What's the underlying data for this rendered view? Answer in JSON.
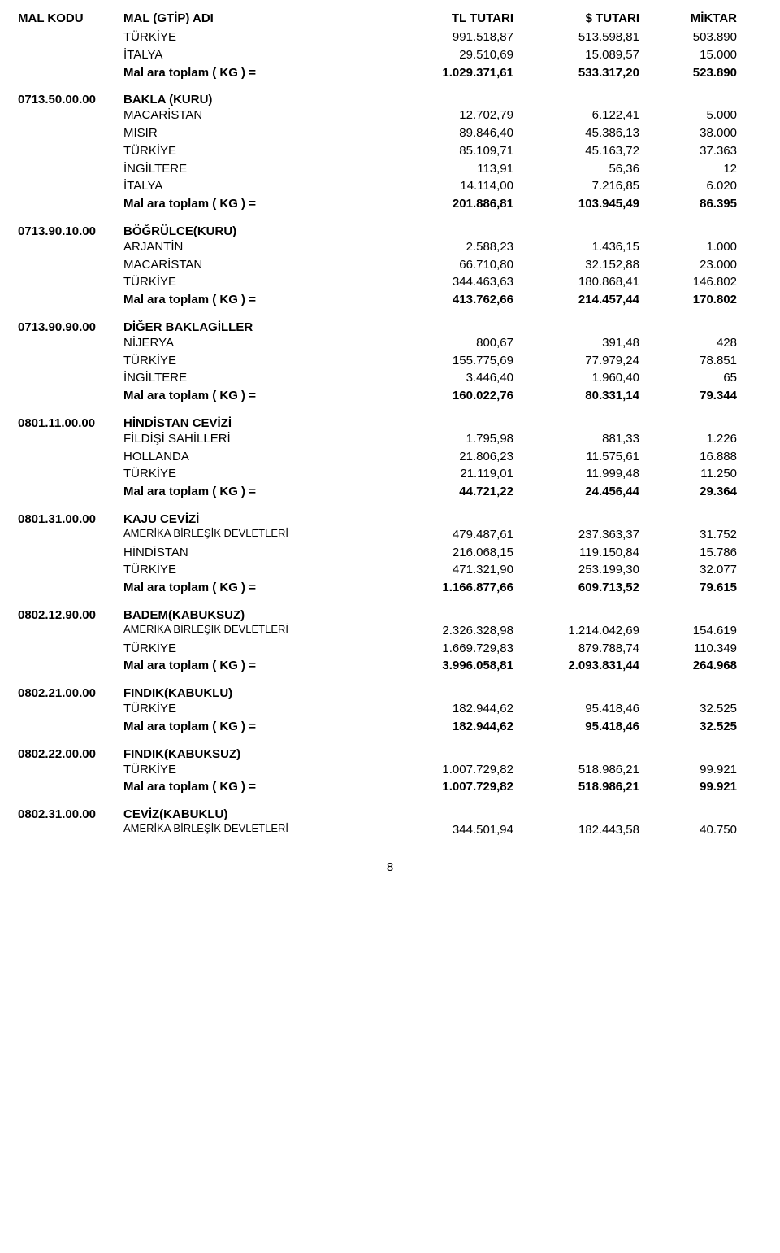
{
  "header": {
    "code": "MAL KODU",
    "name": "MAL (GTİP) ADI",
    "tl": "TL TUTARI",
    "usd": "$ TUTARI",
    "qty": "MİKTAR"
  },
  "intro_rows": [
    {
      "name": "TÜRKİYE",
      "tl": "991.518,87",
      "usd": "513.598,81",
      "qty": "503.890"
    },
    {
      "name": "İTALYA",
      "tl": "29.510,69",
      "usd": "15.089,57",
      "qty": "15.000"
    }
  ],
  "intro_total": {
    "name": "Mal ara toplam  ( KG ) =",
    "tl": "1.029.371,61",
    "usd": "533.317,20",
    "qty": "523.890"
  },
  "sections": [
    {
      "code": "0713.50.00.00",
      "title": "BAKLA (KURU)",
      "rows": [
        {
          "name": "MACARİSTAN",
          "tl": "12.702,79",
          "usd": "6.122,41",
          "qty": "5.000"
        },
        {
          "name": "MISIR",
          "tl": "89.846,40",
          "usd": "45.386,13",
          "qty": "38.000"
        },
        {
          "name": "TÜRKİYE",
          "tl": "85.109,71",
          "usd": "45.163,72",
          "qty": "37.363"
        },
        {
          "name": "İNGİLTERE",
          "tl": "113,91",
          "usd": "56,36",
          "qty": "12"
        },
        {
          "name": "İTALYA",
          "tl": "14.114,00",
          "usd": "7.216,85",
          "qty": "6.020"
        }
      ],
      "total": {
        "name": "Mal ara toplam  ( KG ) =",
        "tl": "201.886,81",
        "usd": "103.945,49",
        "qty": "86.395"
      }
    },
    {
      "code": "0713.90.10.00",
      "title": "BÖĞRÜLCE(KURU)",
      "rows": [
        {
          "name": "ARJANTİN",
          "tl": "2.588,23",
          "usd": "1.436,15",
          "qty": "1.000"
        },
        {
          "name": "MACARİSTAN",
          "tl": "66.710,80",
          "usd": "32.152,88",
          "qty": "23.000"
        },
        {
          "name": "TÜRKİYE",
          "tl": "344.463,63",
          "usd": "180.868,41",
          "qty": "146.802"
        }
      ],
      "total": {
        "name": "Mal ara toplam  ( KG ) =",
        "tl": "413.762,66",
        "usd": "214.457,44",
        "qty": "170.802"
      }
    },
    {
      "code": "0713.90.90.00",
      "title": "DİĞER BAKLAGİLLER",
      "rows": [
        {
          "name": "NİJERYA",
          "tl": "800,67",
          "usd": "391,48",
          "qty": "428"
        },
        {
          "name": "TÜRKİYE",
          "tl": "155.775,69",
          "usd": "77.979,24",
          "qty": "78.851"
        },
        {
          "name": "İNGİLTERE",
          "tl": "3.446,40",
          "usd": "1.960,40",
          "qty": "65"
        }
      ],
      "total": {
        "name": "Mal ara toplam  ( KG ) =",
        "tl": "160.022,76",
        "usd": "80.331,14",
        "qty": "79.344"
      }
    },
    {
      "code": "0801.11.00.00",
      "title": "HİNDİSTAN CEVİZİ",
      "rows": [
        {
          "name": "FİLDİŞİ SAHİLLERİ",
          "tl": "1.795,98",
          "usd": "881,33",
          "qty": "1.226"
        },
        {
          "name": "HOLLANDA",
          "tl": "21.806,23",
          "usd": "11.575,61",
          "qty": "16.888"
        },
        {
          "name": "TÜRKİYE",
          "tl": "21.119,01",
          "usd": "11.999,48",
          "qty": "11.250"
        }
      ],
      "total": {
        "name": "Mal ara toplam  ( KG ) =",
        "tl": "44.721,22",
        "usd": "24.456,44",
        "qty": "29.364"
      }
    },
    {
      "code": "0801.31.00.00",
      "title": "KAJU CEVİZİ",
      "rows": [
        {
          "name": "AMERİKA BİRLEŞİK DEVLETLERİ",
          "tl": "479.487,61",
          "usd": "237.363,37",
          "qty": "31.752",
          "small": true
        },
        {
          "name": "HİNDİSTAN",
          "tl": "216.068,15",
          "usd": "119.150,84",
          "qty": "15.786"
        },
        {
          "name": "TÜRKİYE",
          "tl": "471.321,90",
          "usd": "253.199,30",
          "qty": "32.077"
        }
      ],
      "total": {
        "name": "Mal ara toplam  ( KG ) =",
        "tl": "1.166.877,66",
        "usd": "609.713,52",
        "qty": "79.615"
      }
    },
    {
      "code": "0802.12.90.00",
      "title": "BADEM(KABUKSUZ)",
      "rows": [
        {
          "name": "AMERİKA BİRLEŞİK DEVLETLERİ",
          "tl": "2.326.328,98",
          "usd": "1.214.042,69",
          "qty": "154.619",
          "small": true
        },
        {
          "name": "TÜRKİYE",
          "tl": "1.669.729,83",
          "usd": "879.788,74",
          "qty": "110.349"
        }
      ],
      "total": {
        "name": "Mal ara toplam  ( KG ) =",
        "tl": "3.996.058,81",
        "usd": "2.093.831,44",
        "qty": "264.968"
      }
    },
    {
      "code": "0802.21.00.00",
      "title": "FINDIK(KABUKLU)",
      "rows": [
        {
          "name": "TÜRKİYE",
          "tl": "182.944,62",
          "usd": "95.418,46",
          "qty": "32.525"
        }
      ],
      "total": {
        "name": "Mal ara toplam  ( KG ) =",
        "tl": "182.944,62",
        "usd": "95.418,46",
        "qty": "32.525"
      }
    },
    {
      "code": "0802.22.00.00",
      "title": "FINDIK(KABUKSUZ)",
      "rows": [
        {
          "name": "TÜRKİYE",
          "tl": "1.007.729,82",
          "usd": "518.986,21",
          "qty": "99.921"
        }
      ],
      "total": {
        "name": "Mal ara toplam  ( KG ) =",
        "tl": "1.007.729,82",
        "usd": "518.986,21",
        "qty": "99.921"
      }
    },
    {
      "code": "0802.31.00.00",
      "title": "CEVİZ(KABUKLU)",
      "rows": [
        {
          "name": "AMERİKA BİRLEŞİK DEVLETLERİ",
          "tl": "344.501,94",
          "usd": "182.443,58",
          "qty": "40.750",
          "small": true
        }
      ]
    }
  ],
  "page_number": "8"
}
